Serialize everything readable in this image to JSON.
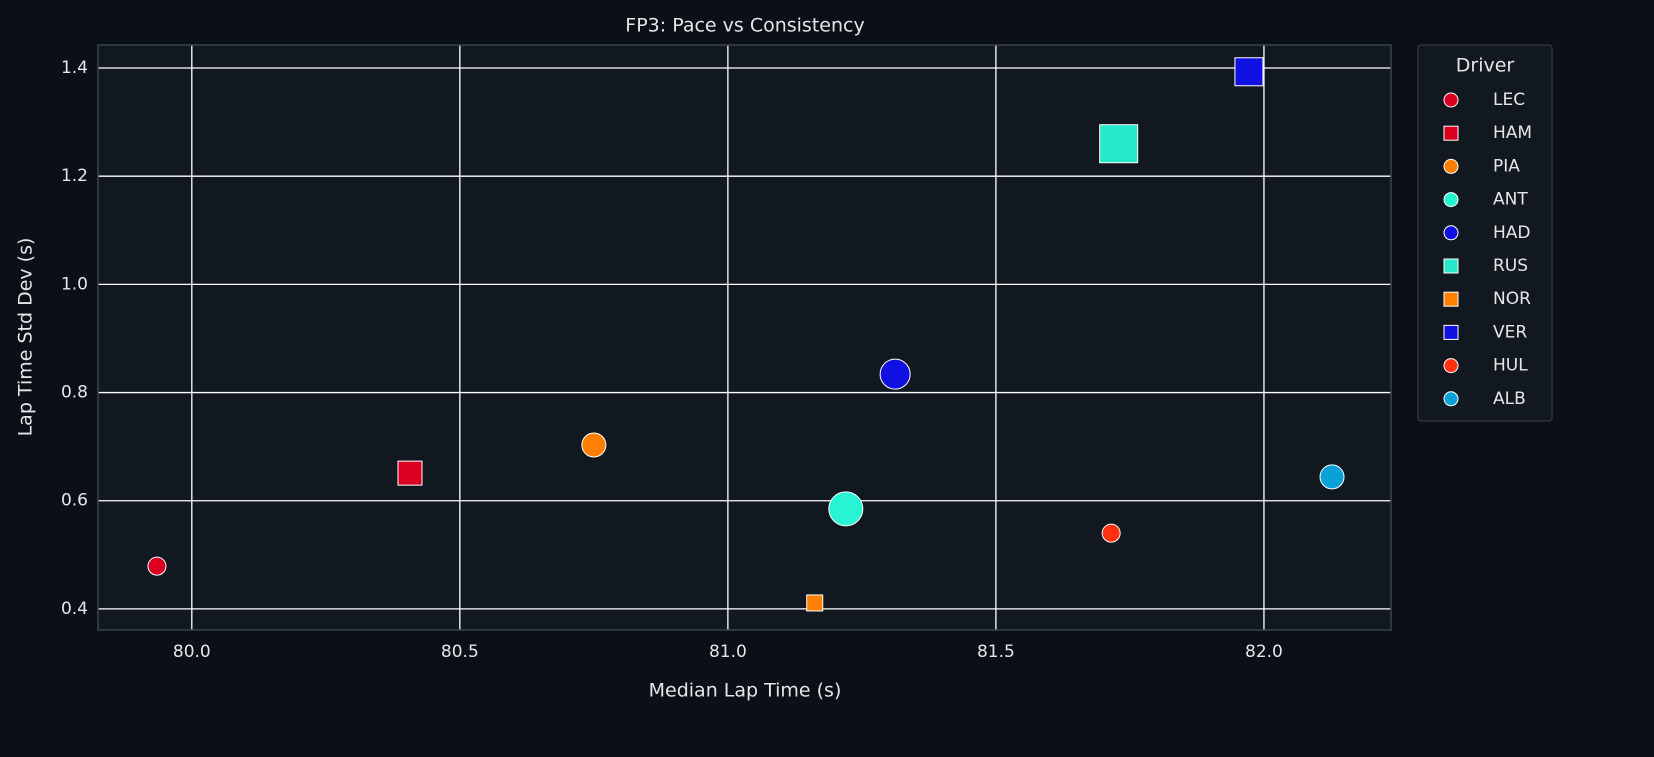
{
  "chart_data": {
    "type": "scatter",
    "title": "FP3: Pace vs Consistency",
    "xlabel": "Median Lap Time (s)",
    "ylabel": "Lap Time Std Dev (s)",
    "xlim": [
      79.825,
      82.237
    ],
    "ylim": [
      0.361,
      1.4425
    ],
    "xticks": [
      {
        "value": 80,
        "label": "80.0"
      },
      80.5,
      {
        "value": 81,
        "label": "81.0"
      },
      81.5,
      {
        "value": 82,
        "label": "82.0"
      }
    ],
    "yticks": [
      0.4,
      0.6,
      0.8,
      {
        "value": 1,
        "label": "1.0"
      },
      1.2,
      1.4
    ],
    "grid": true,
    "legend_title": "Driver",
    "legend_position": "outside-upper-right",
    "series": [
      {
        "name": "LEC",
        "color": "#dc0020",
        "marker": "circle",
        "x": [
          79.935
        ],
        "values": [
          0.479
        ],
        "sizes": [
          9
        ]
      },
      {
        "name": "HAM",
        "color": "#dc0020",
        "marker": "square",
        "x": [
          80.407
        ],
        "values": [
          0.651
        ],
        "sizes": [
          12
        ]
      },
      {
        "name": "PIA",
        "color": "#ff8000",
        "marker": "circle",
        "x": [
          80.75
        ],
        "values": [
          0.703
        ],
        "sizes": [
          12
        ]
      },
      {
        "name": "ANT",
        "color": "#27f4d2",
        "marker": "circle",
        "x": [
          81.22
        ],
        "values": [
          0.585
        ],
        "sizes": [
          17
        ]
      },
      {
        "name": "HAD",
        "color": "#1010e0",
        "marker": "circle",
        "x": [
          81.312
        ],
        "values": [
          0.834
        ],
        "sizes": [
          15
        ]
      },
      {
        "name": "RUS",
        "color": "#27e8c8",
        "marker": "square",
        "x": [
          81.729
        ],
        "values": [
          1.26
        ],
        "sizes": [
          19
        ]
      },
      {
        "name": "NOR",
        "color": "#ff8000",
        "marker": "square",
        "x": [
          81.162
        ],
        "values": [
          0.411
        ],
        "sizes": [
          8
        ]
      },
      {
        "name": "VER",
        "color": "#1010e0",
        "marker": "square",
        "x": [
          81.972
        ],
        "values": [
          1.393
        ],
        "sizes": [
          14
        ]
      },
      {
        "name": "HUL",
        "color": "#ff2f10",
        "marker": "circle",
        "x": [
          81.715
        ],
        "values": [
          0.54
        ],
        "sizes": [
          9
        ]
      },
      {
        "name": "ALB",
        "color": "#0aa0d8",
        "marker": "circle",
        "x": [
          82.127
        ],
        "values": [
          0.644
        ],
        "sizes": [
          12
        ]
      }
    ]
  }
}
